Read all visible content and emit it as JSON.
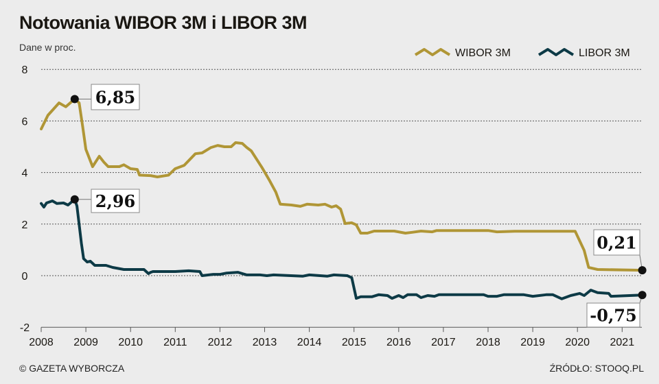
{
  "header": {
    "title": "Notowania WIBOR 3M i LIBOR 3M",
    "subtitle": "Dane w proc."
  },
  "footer": {
    "credit": "© GAZETA WYBORCZA",
    "source": "ŹRÓDŁO: STOOQ.PL"
  },
  "colors": {
    "background": "#ececec",
    "wibor": "#b09636",
    "libor": "#0d3a46",
    "marker": "#111111"
  },
  "chart_data": {
    "type": "line",
    "title": "Notowania WIBOR 3M i LIBOR 3M",
    "subtitle": "Dane w proc.",
    "xlim": [
      2008,
      2021.45
    ],
    "ylim": [
      -2,
      8
    ],
    "x_ticks": [
      "2008",
      "2009",
      "2010",
      "2011",
      "2012",
      "2013",
      "2014",
      "2015",
      "2016",
      "2017",
      "2018",
      "2019",
      "2020",
      "2021"
    ],
    "y_ticks": [
      "8",
      "6",
      "4",
      "2",
      "0",
      "-2"
    ],
    "grid": true,
    "legend_placement": "top-right",
    "series": [
      {
        "name": "WIBOR 3M",
        "color": "#b09636",
        "x": [
          2008.0,
          2008.15,
          2008.4,
          2008.55,
          2008.75,
          2008.85,
          2008.93,
          2009.0,
          2009.15,
          2009.3,
          2009.4,
          2009.5,
          2009.75,
          2009.85,
          2010.0,
          2010.15,
          2010.2,
          2010.45,
          2010.6,
          2010.85,
          2011.0,
          2011.2,
          2011.45,
          2011.6,
          2011.8,
          2011.95,
          2012.1,
          2012.25,
          2012.35,
          2012.5,
          2012.6,
          2012.7,
          2012.85,
          2012.95,
          2013.1,
          2013.25,
          2013.35,
          2013.6,
          2013.8,
          2013.95,
          2014.2,
          2014.35,
          2014.5,
          2014.6,
          2014.7,
          2014.8,
          2014.95,
          2015.05,
          2015.15,
          2015.3,
          2015.45,
          2015.9,
          2016.15,
          2016.3,
          2016.5,
          2016.75,
          2016.85,
          2018.0,
          2018.2,
          2018.6,
          2019.95,
          2020.15,
          2020.25,
          2020.45,
          2021.45
        ],
        "values": [
          5.69,
          6.22,
          6.7,
          6.55,
          6.85,
          6.7,
          5.77,
          4.9,
          4.23,
          4.63,
          4.41,
          4.23,
          4.23,
          4.3,
          4.15,
          4.12,
          3.9,
          3.88,
          3.83,
          3.9,
          4.15,
          4.28,
          4.73,
          4.76,
          4.97,
          5.05,
          5.0,
          5.0,
          5.16,
          5.13,
          4.97,
          4.84,
          4.44,
          4.17,
          3.72,
          3.24,
          2.77,
          2.74,
          2.69,
          2.77,
          2.74,
          2.77,
          2.66,
          2.71,
          2.58,
          2.02,
          2.05,
          1.97,
          1.65,
          1.65,
          1.73,
          1.73,
          1.65,
          1.68,
          1.73,
          1.7,
          1.75,
          1.75,
          1.7,
          1.72,
          1.72,
          0.98,
          0.32,
          0.24,
          0.21
        ]
      },
      {
        "name": "LIBOR 3M",
        "color": "#0d3a46",
        "x": [
          2008.0,
          2008.06,
          2008.12,
          2008.25,
          2008.35,
          2008.5,
          2008.6,
          2008.75,
          2008.8,
          2008.9,
          2008.95,
          2009.03,
          2009.1,
          2009.2,
          2009.45,
          2009.6,
          2009.85,
          2010.3,
          2010.4,
          2010.45,
          2010.5,
          2011.0,
          2011.3,
          2011.55,
          2011.6,
          2011.85,
          2012.0,
          2012.15,
          2012.4,
          2012.6,
          2012.9,
          2013.05,
          2013.2,
          2013.85,
          2014.0,
          2014.4,
          2014.55,
          2014.85,
          2014.95,
          2015.05,
          2015.15,
          2015.4,
          2015.55,
          2015.75,
          2015.85,
          2016.0,
          2016.1,
          2016.2,
          2016.4,
          2016.5,
          2016.65,
          2016.8,
          2016.9,
          2017.9,
          2018.0,
          2018.2,
          2018.35,
          2018.8,
          2019.0,
          2019.3,
          2019.45,
          2019.65,
          2019.85,
          2020.05,
          2020.15,
          2020.3,
          2020.45,
          2020.7,
          2020.75,
          2021.45
        ],
        "values": [
          2.8,
          2.66,
          2.82,
          2.9,
          2.8,
          2.82,
          2.74,
          2.96,
          2.7,
          1.25,
          0.66,
          0.53,
          0.56,
          0.4,
          0.4,
          0.32,
          0.24,
          0.24,
          0.08,
          0.13,
          0.16,
          0.16,
          0.19,
          0.16,
          0.0,
          0.05,
          0.05,
          0.1,
          0.13,
          0.03,
          0.03,
          0.0,
          0.03,
          -0.02,
          0.03,
          -0.02,
          0.03,
          0.0,
          -0.08,
          -0.88,
          -0.82,
          -0.82,
          -0.74,
          -0.77,
          -0.88,
          -0.77,
          -0.85,
          -0.74,
          -0.74,
          -0.85,
          -0.77,
          -0.8,
          -0.74,
          -0.74,
          -0.8,
          -0.8,
          -0.74,
          -0.74,
          -0.8,
          -0.74,
          -0.74,
          -0.9,
          -0.77,
          -0.69,
          -0.77,
          -0.56,
          -0.66,
          -0.69,
          -0.8,
          -0.75
        ]
      }
    ],
    "annotations": [
      {
        "series": "WIBOR 3M",
        "x": 2008.75,
        "value": 6.85,
        "label": "6,85"
      },
      {
        "series": "LIBOR 3M",
        "x": 2008.75,
        "value": 2.96,
        "label": "2,96"
      },
      {
        "series": "WIBOR 3M",
        "x": 2021.45,
        "value": 0.21,
        "label": "0,21"
      },
      {
        "series": "LIBOR 3M",
        "x": 2021.45,
        "value": -0.75,
        "label": "-0,75"
      }
    ]
  }
}
